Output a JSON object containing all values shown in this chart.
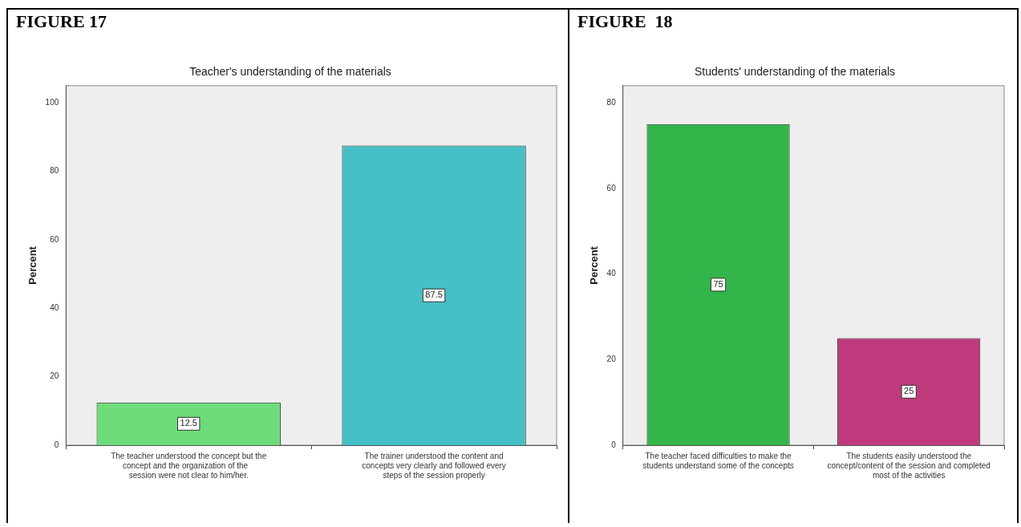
{
  "chart_data": [
    {
      "type": "bar",
      "title": "Teacher's understanding of the materials",
      "annotations": [
        "FIGURE 17"
      ],
      "ylabel": "Percent",
      "categories": [
        "The teacher understood the concept but the concept and the organization of the    session were not clear to him/her.",
        "The trainer understood the content and concepts very clearly and followed every steps of the session properly"
      ],
      "values": [
        12.5,
        87.5
      ],
      "colors": [
        "#6fdc7b",
        "#46bfc6"
      ],
      "ylim": [
        0,
        105
      ],
      "yticks": [
        0,
        20,
        40,
        60,
        80,
        100
      ],
      "data_labels": true,
      "grid": false,
      "legend": false
    },
    {
      "type": "bar",
      "title": "Students' understanding of the materials",
      "annotations": [
        "FIGURE  18"
      ],
      "ylabel": "Percent",
      "categories": [
        "The teacher faced difficulties to make the students understand some of the concepts",
        "The students easily understood the concept/content of the session and completed most of the activities"
      ],
      "values": [
        75,
        25
      ],
      "colors": [
        "#33b54a",
        "#bf3a7c"
      ],
      "ylim": [
        0,
        84
      ],
      "yticks": [
        0,
        20,
        40,
        60,
        80
      ],
      "data_labels": true,
      "grid": false,
      "legend": false
    }
  ]
}
